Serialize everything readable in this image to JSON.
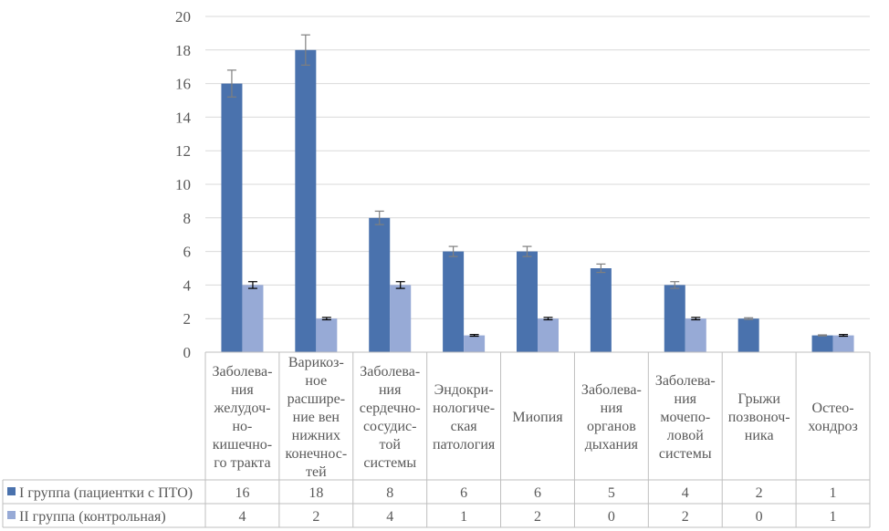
{
  "chart_data": {
    "type": "bar",
    "title": "",
    "xlabel": "",
    "ylabel": "",
    "ylim": [
      0,
      20
    ],
    "yticks": [
      0,
      2,
      4,
      6,
      8,
      10,
      12,
      14,
      16,
      18,
      20
    ],
    "grid": true,
    "legend_placement": "data-table-left",
    "categories": [
      [
        "Заболева-",
        "ния",
        "желудоч-",
        "но-",
        "кишечно-",
        "го тракта"
      ],
      [
        "Варикоз-",
        "ное",
        "расшире-",
        "ние вен",
        "нижних",
        "конечнос-",
        "тей"
      ],
      [
        "Заболева-",
        "ния",
        "сердечно-",
        "сосудис-",
        "той",
        "системы"
      ],
      [
        "Эндокри-",
        "нологиче-",
        "ская",
        "патология"
      ],
      [
        "Миопия"
      ],
      [
        "Заболева-",
        "ния",
        "органов",
        "дыхания"
      ],
      [
        "Заболева-",
        "ния",
        "мочепо-",
        "ловой",
        "системы"
      ],
      [
        "Грыжи",
        "позвоноч-",
        "ника"
      ],
      [
        "Остео-",
        "хондроз"
      ]
    ],
    "series": [
      {
        "name": "I группа (пациентки с ПТО)",
        "color": "#4a72ad",
        "error_color": "#7f7f7f",
        "values": [
          16,
          18,
          8,
          6,
          6,
          5,
          4,
          2,
          1
        ],
        "errors": [
          0.8,
          0.9,
          0.4,
          0.3,
          0.3,
          0.25,
          0.2,
          0.05,
          0.03
        ]
      },
      {
        "name": "II группа (контрольная)",
        "color": "#97aad6",
        "error_color": "#000000",
        "values": [
          4,
          2,
          4,
          1,
          2,
          0,
          2,
          0,
          1
        ],
        "errors": [
          0.2,
          0.07,
          0.2,
          0.05,
          0.07,
          0,
          0.07,
          0,
          0.05
        ]
      }
    ],
    "table": {
      "rows": [
        [
          "16",
          "18",
          "8",
          "6",
          "6",
          "5",
          "4",
          "2",
          "1"
        ],
        [
          "4",
          "2",
          "4",
          "1",
          "2",
          "0",
          "2",
          "0",
          "1"
        ]
      ]
    }
  }
}
